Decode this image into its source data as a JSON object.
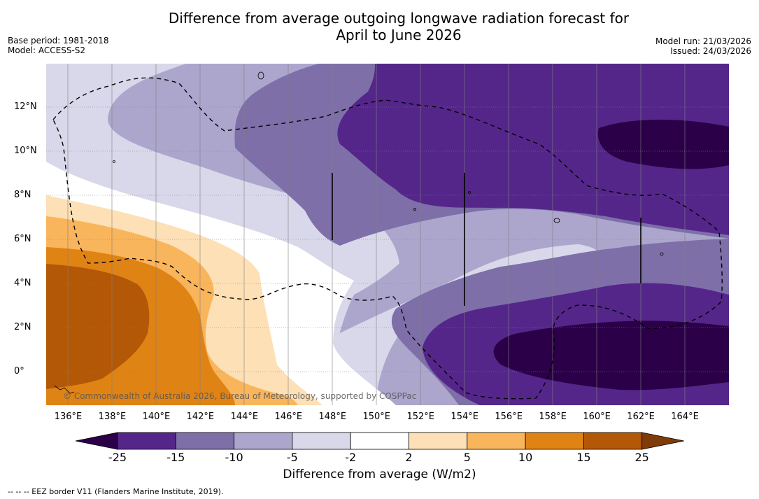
{
  "title": {
    "line1": "Difference from average outgoing longwave radiation forecast for",
    "line2": "April to June 2026"
  },
  "meta_left": {
    "base_period": "Base period: 1981-2018",
    "model": "Model: ACCESS-S2"
  },
  "meta_right": {
    "model_run": "Model run: 21/03/2026",
    "issued": "Issued: 24/03/2026"
  },
  "map": {
    "lat_range": [
      -1.5,
      14
    ],
    "lon_range": [
      135,
      166
    ],
    "y_ticks": [
      "12°N",
      "10°N",
      "8°N",
      "6°N",
      "4°N",
      "2°N",
      "0°"
    ],
    "x_ticks": [
      "136°E",
      "138°E",
      "140°E",
      "142°E",
      "144°E",
      "146°E",
      "148°E",
      "150°E",
      "152°E",
      "154°E",
      "156°E",
      "158°E",
      "160°E",
      "162°E",
      "164°E"
    ],
    "copyright": "© Commonwealth of Australia 2026, Bureau of Meteorology, supported by COSPPac"
  },
  "colorbar": {
    "labels": [
      "-25",
      "-15",
      "-10",
      "-5",
      "-2",
      "2",
      "5",
      "10",
      "15",
      "25"
    ],
    "colors": [
      "#2b0048",
      "#54268a",
      "#7e6fa9",
      "#aca6cd",
      "#d8d8ea",
      "#ffffff",
      "#fde0b5",
      "#f9b55c",
      "#e08315",
      "#b35806",
      "#7f3b08"
    ],
    "title": "Difference from average (W/m2)"
  },
  "footnote": "--  --  -- EEZ border V11 (Flanders Marine Institute, 2019)."
}
